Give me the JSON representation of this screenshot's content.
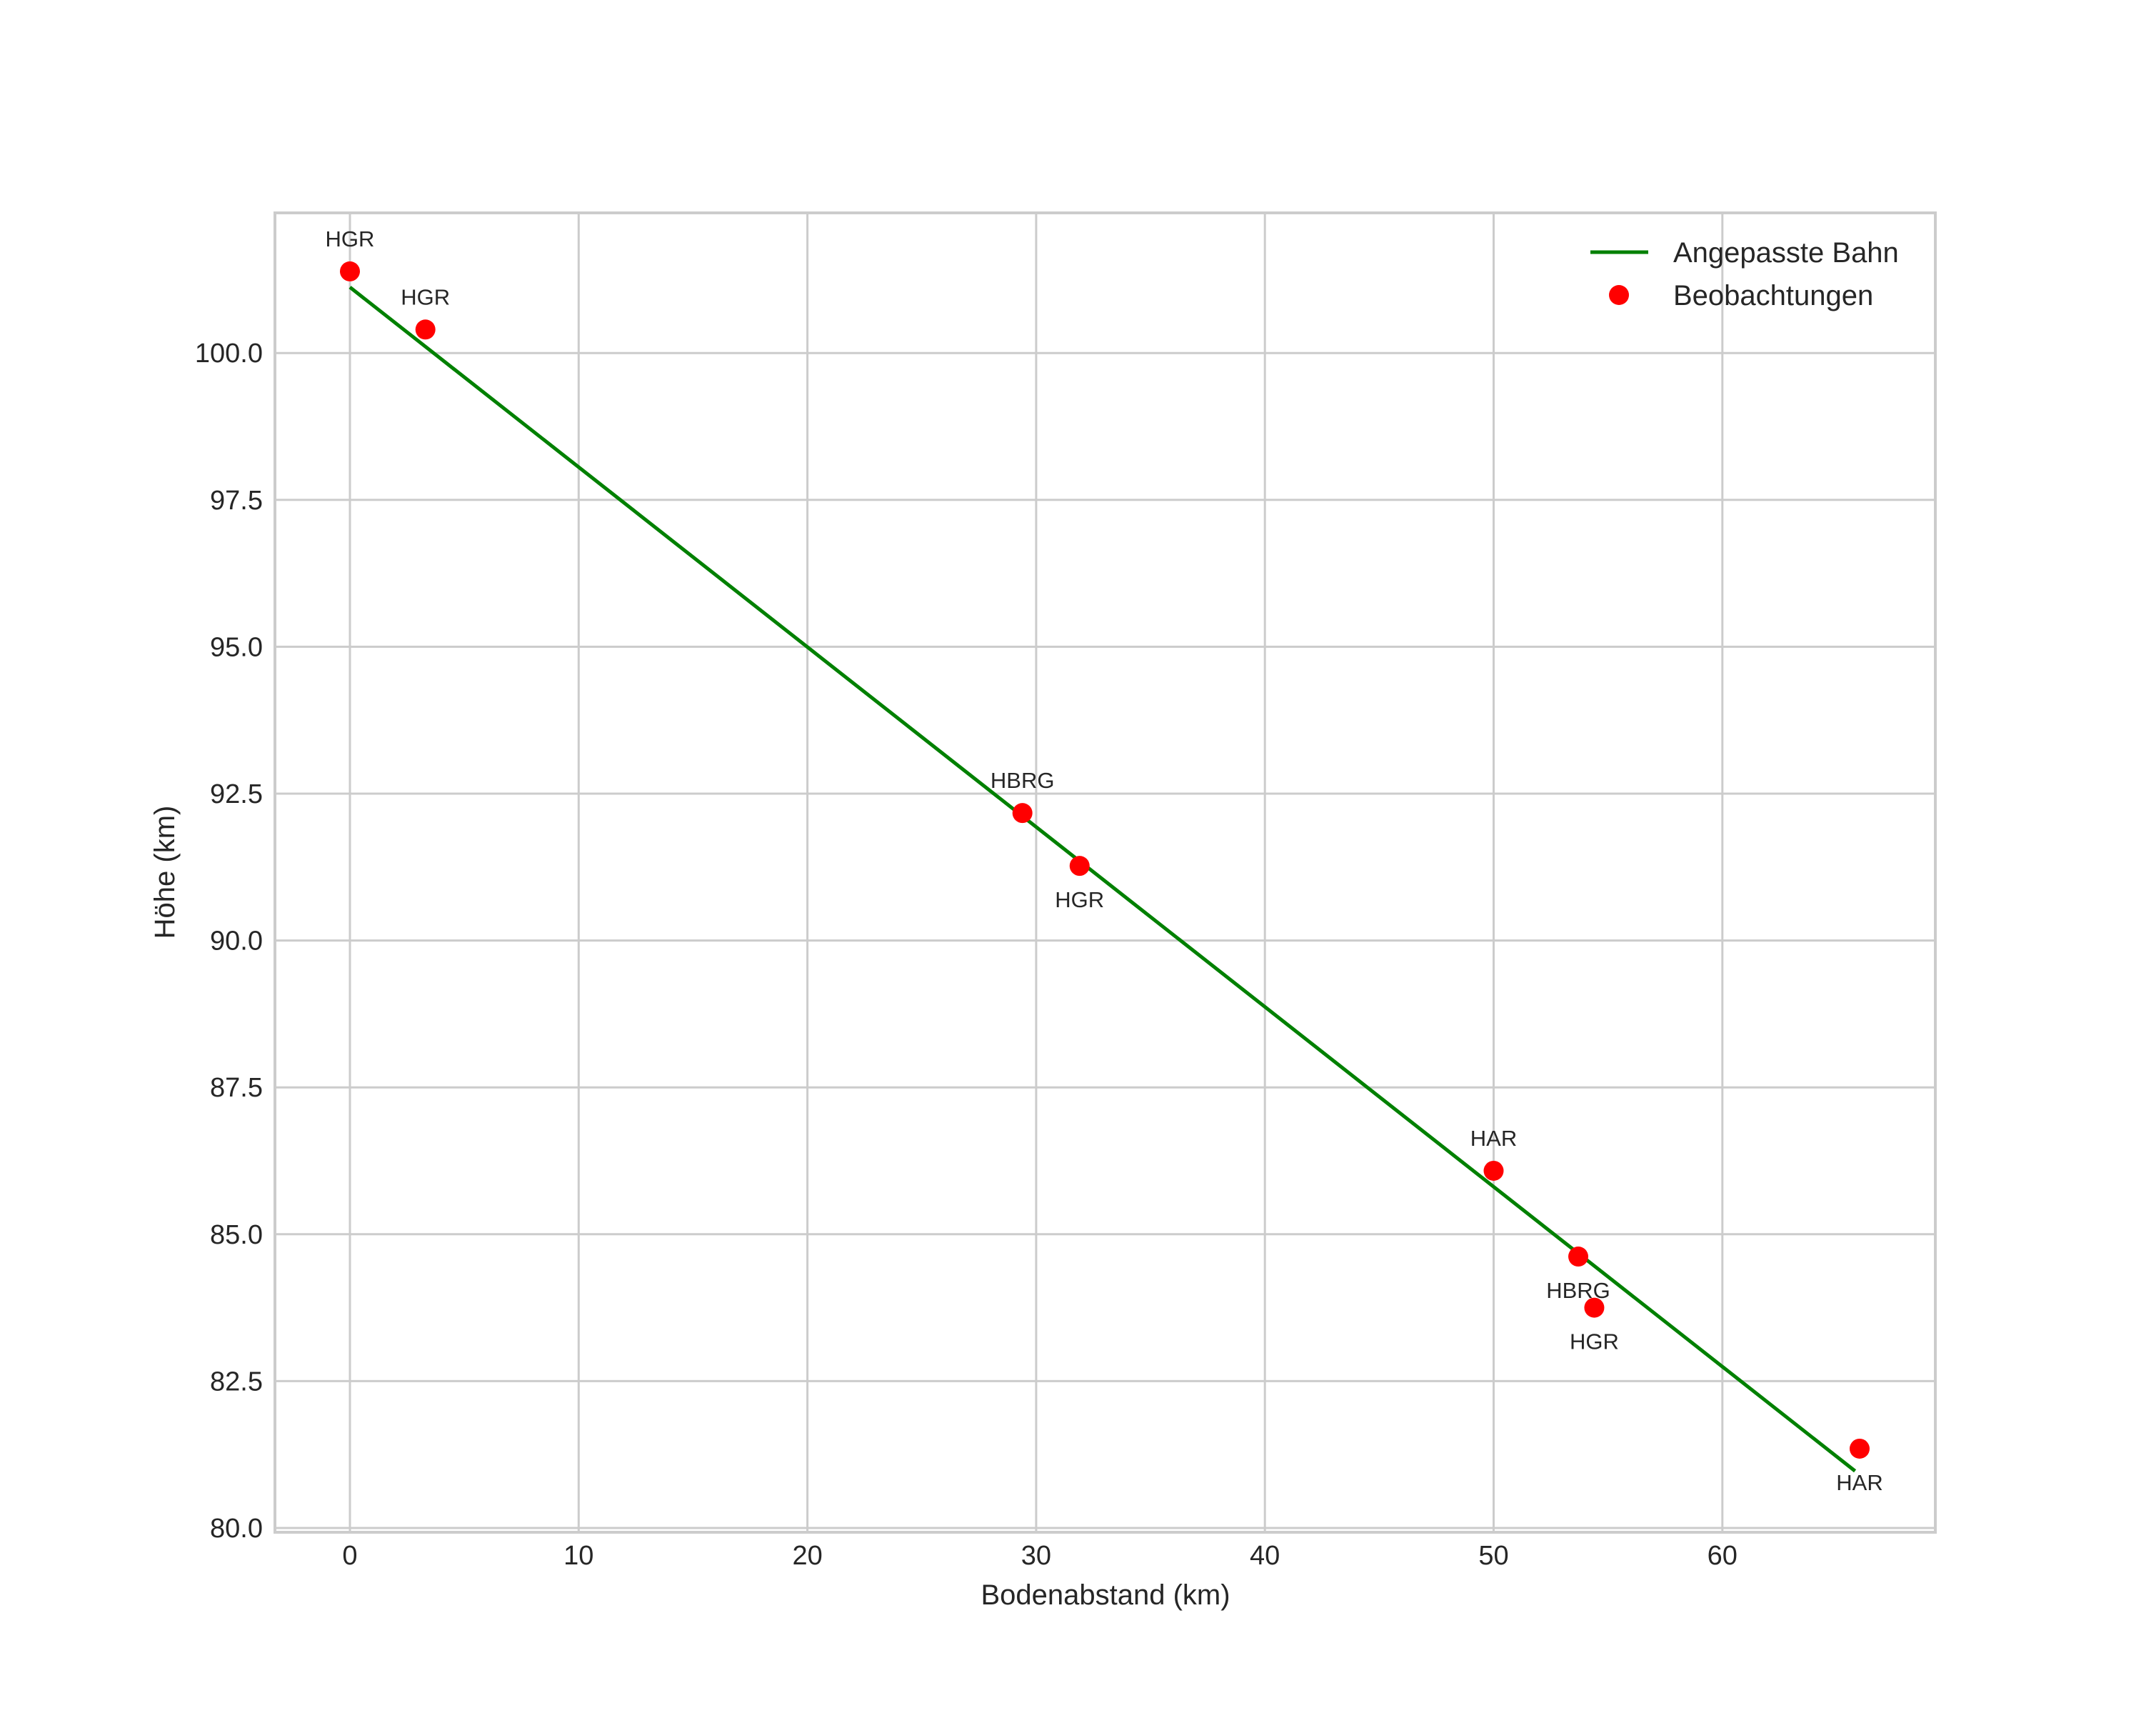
{
  "chart_data": {
    "type": "scatter",
    "title": "",
    "xlabel": "Bodenabstand (km)",
    "ylabel": "Höhe (km)",
    "xlim": [
      -3.3,
      69.3
    ],
    "ylim": [
      79.93,
      102.4
    ],
    "xticks": [
      0,
      10,
      20,
      30,
      40,
      50,
      60
    ],
    "xtick_labels": [
      "0",
      "10",
      "20",
      "30",
      "40",
      "50",
      "60"
    ],
    "yticks": [
      80.0,
      82.5,
      85.0,
      87.5,
      90.0,
      92.5,
      95.0,
      97.5,
      100.0
    ],
    "ytick_labels": [
      "80.0",
      "82.5",
      "85.0",
      "87.5",
      "90.0",
      "92.5",
      "95.0",
      "97.5",
      "100.0"
    ],
    "grid": true,
    "legend_position": "upper right",
    "series": [
      {
        "name": "Angepasste Bahn",
        "type": "line",
        "color": "#008000",
        "x": [
          0.0,
          65.8
        ],
        "y": [
          101.12,
          80.97
        ]
      },
      {
        "name": "Beobachtungen",
        "type": "scatter",
        "color": "#ff0000",
        "points": [
          {
            "x": 0.0,
            "y": 101.39,
            "label": "HGR",
            "label_pos": "above"
          },
          {
            "x": 3.3,
            "y": 100.4,
            "label": "HGR",
            "label_pos": "above"
          },
          {
            "x": 29.4,
            "y": 92.17,
            "label": "HBRG",
            "label_pos": "above"
          },
          {
            "x": 31.9,
            "y": 91.27,
            "label": "HGR",
            "label_pos": "below"
          },
          {
            "x": 50.0,
            "y": 86.08,
            "label": "HAR",
            "label_pos": "above"
          },
          {
            "x": 53.7,
            "y": 84.62,
            "label": "HBRG",
            "label_pos": "below"
          },
          {
            "x": 54.4,
            "y": 83.75,
            "label": "HGR",
            "label_pos": "below"
          },
          {
            "x": 66.0,
            "y": 81.35,
            "label": "HAR",
            "label_pos": "below"
          }
        ]
      }
    ]
  },
  "legend": {
    "items": [
      {
        "label": "Angepasste Bahn",
        "marker": "line",
        "color": "#008000"
      },
      {
        "label": "Beobachtungen",
        "marker": "dot",
        "color": "#ff0000"
      }
    ]
  },
  "colors": {
    "grid": "#cccccc",
    "spine": "#cccccc",
    "text": "#262626",
    "line": "#008000",
    "points": "#ff0000"
  }
}
